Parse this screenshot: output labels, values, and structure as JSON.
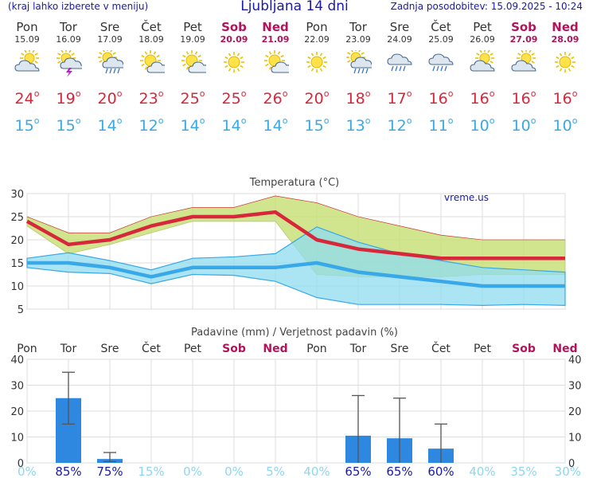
{
  "header": {
    "menu_hint": "(kraj lahko izberete v meniju)",
    "title": "Ljubljana 14 dni",
    "updated": "Zadnja posodobitev: 15.09.2025 - 10:24"
  },
  "days": [
    {
      "name": "Pon",
      "date": "15.09",
      "weekend": false,
      "icon": "partly-cloudy-icon",
      "tmax": "24",
      "tmin": "15"
    },
    {
      "name": "Tor",
      "date": "16.09",
      "weekend": false,
      "icon": "thunderstorm-sun-icon",
      "tmax": "19",
      "tmin": "15"
    },
    {
      "name": "Sre",
      "date": "17.09",
      "weekend": false,
      "icon": "sun-cloud-rain-icon",
      "tmax": "20",
      "tmin": "14"
    },
    {
      "name": "Čet",
      "date": "18.09",
      "weekend": false,
      "icon": "mostly-sunny-icon",
      "tmax": "23",
      "tmin": "12"
    },
    {
      "name": "Pet",
      "date": "19.09",
      "weekend": false,
      "icon": "mostly-sunny-icon",
      "tmax": "25",
      "tmin": "14"
    },
    {
      "name": "Sob",
      "date": "20.09",
      "weekend": true,
      "icon": "sun-icon",
      "tmax": "25",
      "tmin": "14"
    },
    {
      "name": "Ned",
      "date": "21.09",
      "weekend": true,
      "icon": "mostly-sunny-icon",
      "tmax": "26",
      "tmin": "14"
    },
    {
      "name": "Pon",
      "date": "22.09",
      "weekend": false,
      "icon": "sun-icon",
      "tmax": "20",
      "tmin": "15"
    },
    {
      "name": "Tor",
      "date": "23.09",
      "weekend": false,
      "icon": "sun-cloud-rain-icon",
      "tmax": "18",
      "tmin": "13"
    },
    {
      "name": "Sre",
      "date": "24.09",
      "weekend": false,
      "icon": "cloud-rain-icon",
      "tmax": "17",
      "tmin": "12"
    },
    {
      "name": "Čet",
      "date": "25.09",
      "weekend": false,
      "icon": "cloud-rain-icon",
      "tmax": "16",
      "tmin": "11"
    },
    {
      "name": "Pet",
      "date": "26.09",
      "weekend": false,
      "icon": "partly-cloudy-icon",
      "tmax": "16",
      "tmin": "10"
    },
    {
      "name": "Sob",
      "date": "27.09",
      "weekend": true,
      "icon": "partly-cloudy-icon",
      "tmax": "16",
      "tmin": "10"
    },
    {
      "name": "Ned",
      "date": "28.09",
      "weekend": true,
      "icon": "sun-icon",
      "tmax": "16",
      "tmin": "10"
    }
  ],
  "colors": {
    "max_line": "#d6283a",
    "max_band": "#c8e07a",
    "min_line": "#38a8e8",
    "min_band": "#8fdcf0",
    "overlap": "#88d08a",
    "bar": "#2e88e0",
    "weekend": "#b0145a",
    "prob_high": "#1a1aa6",
    "prob_low": "#8fd6f0"
  },
  "chart_data": [
    {
      "type": "line",
      "title": "Temperatura (°C)",
      "watermark": "vreme.us",
      "ylim": [
        5,
        30
      ],
      "yticks": [
        5,
        10,
        15,
        20,
        25,
        30
      ],
      "series": [
        {
          "name": "max",
          "values": [
            24,
            19,
            20,
            23,
            25,
            25,
            26,
            20,
            18,
            17,
            16,
            16,
            16,
            16
          ],
          "band_high": [
            25,
            21.5,
            21.5,
            25,
            27,
            27,
            29.5,
            28,
            25,
            23,
            21,
            20,
            20,
            20
          ],
          "band_low": [
            23,
            17,
            19,
            21.5,
            24,
            24,
            24,
            12.5,
            12,
            12,
            12,
            12.5,
            12.5,
            12.5
          ]
        },
        {
          "name": "min",
          "values": [
            15,
            15,
            14,
            12,
            14,
            14,
            14,
            15,
            13,
            12,
            11,
            10,
            10,
            10
          ],
          "band_high": [
            16,
            17.2,
            15.5,
            13.5,
            16,
            16.3,
            17,
            22.8,
            19.5,
            17,
            15.5,
            14,
            13.5,
            13
          ],
          "band_low": [
            14,
            13,
            12.7,
            10.5,
            12.5,
            12.3,
            11,
            7.5,
            6,
            6,
            6,
            5.8,
            6,
            5.8
          ]
        }
      ]
    },
    {
      "type": "bar",
      "title": "Padavine (mm) / Verjetnost padavin (%)",
      "categories": [
        "Pon",
        "Tor",
        "Sre",
        "Čet",
        "Pet",
        "Sob",
        "Ned",
        "Pon",
        "Tor",
        "Sre",
        "Čet",
        "Pet",
        "Sob",
        "Ned"
      ],
      "weekend": [
        false,
        false,
        false,
        false,
        false,
        true,
        true,
        false,
        false,
        false,
        false,
        false,
        true,
        true
      ],
      "ylim": [
        0,
        40
      ],
      "yticks": [
        0,
        10,
        20,
        30,
        40
      ],
      "values": [
        0,
        25,
        1.5,
        0,
        0,
        0,
        0,
        0,
        10.5,
        9.5,
        5.5,
        0,
        0,
        0
      ],
      "err_low": [
        0,
        15,
        0.5,
        0,
        0,
        0,
        0,
        0,
        0,
        0,
        0,
        0,
        0,
        0
      ],
      "err_high": [
        0,
        35,
        4,
        0,
        0,
        0,
        0,
        0,
        26,
        25,
        15,
        0,
        0,
        0
      ],
      "probability": [
        "0%",
        "85%",
        "75%",
        "15%",
        "0%",
        "0%",
        "5%",
        "40%",
        "65%",
        "65%",
        "60%",
        "40%",
        "35%",
        "30%"
      ]
    }
  ]
}
